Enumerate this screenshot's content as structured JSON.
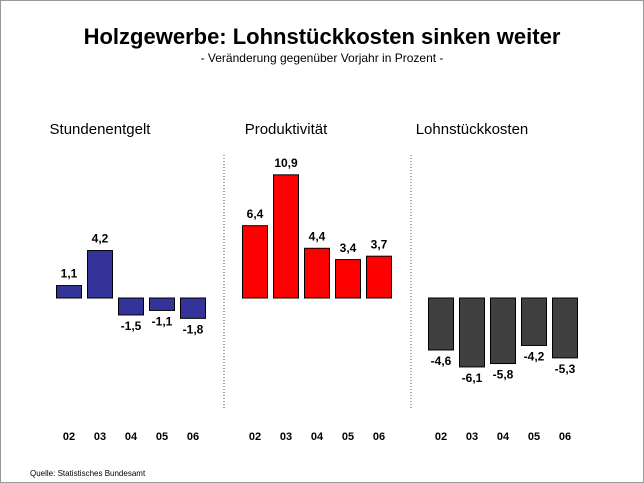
{
  "title": "Holzgewerbe: Lohnstückkosten sinken weiter",
  "subtitle": "- Veränderung gegenüber Vorjahr in Prozent -",
  "source": "Quelle: Statistisches Bundesamt",
  "chart_data": [
    {
      "type": "bar",
      "title": "Stundenentgelt",
      "categories": [
        "02",
        "03",
        "04",
        "05",
        "06"
      ],
      "values": [
        1.1,
        4.2,
        -1.5,
        -1.1,
        -1.8
      ],
      "value_labels": [
        "1,1",
        "4,2",
        "-1,5",
        "-1,1",
        "-1,8"
      ],
      "color": "#333399"
    },
    {
      "type": "bar",
      "title": "Produktivität",
      "categories": [
        "02",
        "03",
        "04",
        "05",
        "06"
      ],
      "values": [
        6.4,
        10.9,
        4.4,
        3.4,
        3.7
      ],
      "value_labels": [
        "6,4",
        "10,9",
        "4,4",
        "3,4",
        "3,7"
      ],
      "color": "#ff0000"
    },
    {
      "type": "bar",
      "title": "Lohnstückkosten",
      "categories": [
        "02",
        "03",
        "04",
        "05",
        "06"
      ],
      "values": [
        -4.6,
        -6.1,
        -5.8,
        -4.2,
        -5.3
      ],
      "value_labels": [
        "-4,6",
        "-6,1",
        "-5,8",
        "-4,2",
        "-5,3"
      ],
      "color": "#404040"
    }
  ]
}
